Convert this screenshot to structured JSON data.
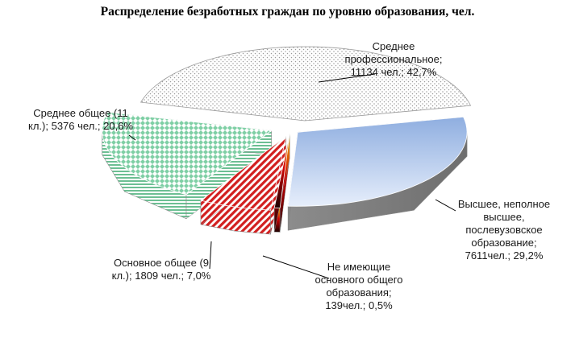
{
  "chart_data": {
    "type": "pie",
    "title": "Распределение безработных граждан по уровню образования, чел.",
    "unit": "чел.",
    "slices": [
      {
        "id": "secondary-professional",
        "label_lines": [
          "Среднее",
          "профессиональное;",
          "11134 чел.; 42,7%"
        ],
        "value": 11134,
        "percent": 42.7,
        "top_color": "#ffffff",
        "side_color": "#6d6d6d",
        "pattern": "dots-gray"
      },
      {
        "id": "higher",
        "label_lines": [
          "Высшее, неполное",
          "высшее,",
          "послевузовское",
          "образование;",
          "7611чел.; 29,2%"
        ],
        "value": 7611,
        "percent": 29.2,
        "top_color": "#a9bfe6",
        "side_color": "#8a8a8a",
        "pattern": "gradient-blue"
      },
      {
        "id": "no-basic",
        "label_lines": [
          "Не имеющие",
          "основного общего",
          "образования;",
          "139чел.; 0,5%"
        ],
        "value": 139,
        "percent": 0.5,
        "top_color": "#e8b200",
        "side_color": "#1a0000",
        "pattern": "solid-dark"
      },
      {
        "id": "basic-general",
        "label_lines": [
          "Основное общее (9",
          "кл.); 1809 чел.; 7,0%"
        ],
        "value": 1809,
        "percent": 7.0,
        "top_color": "#d21f1f",
        "side_color": "#d21f1f",
        "pattern": "stripes-red"
      },
      {
        "id": "secondary-general",
        "label_lines": [
          "Среднее  общее (11",
          "кл.); 5376 чел.; 20,6%"
        ],
        "value": 5376,
        "percent": 20.6,
        "top_color": "#7fcfa5",
        "side_color": "#7fcfa5",
        "pattern": "diamonds-green"
      }
    ]
  }
}
